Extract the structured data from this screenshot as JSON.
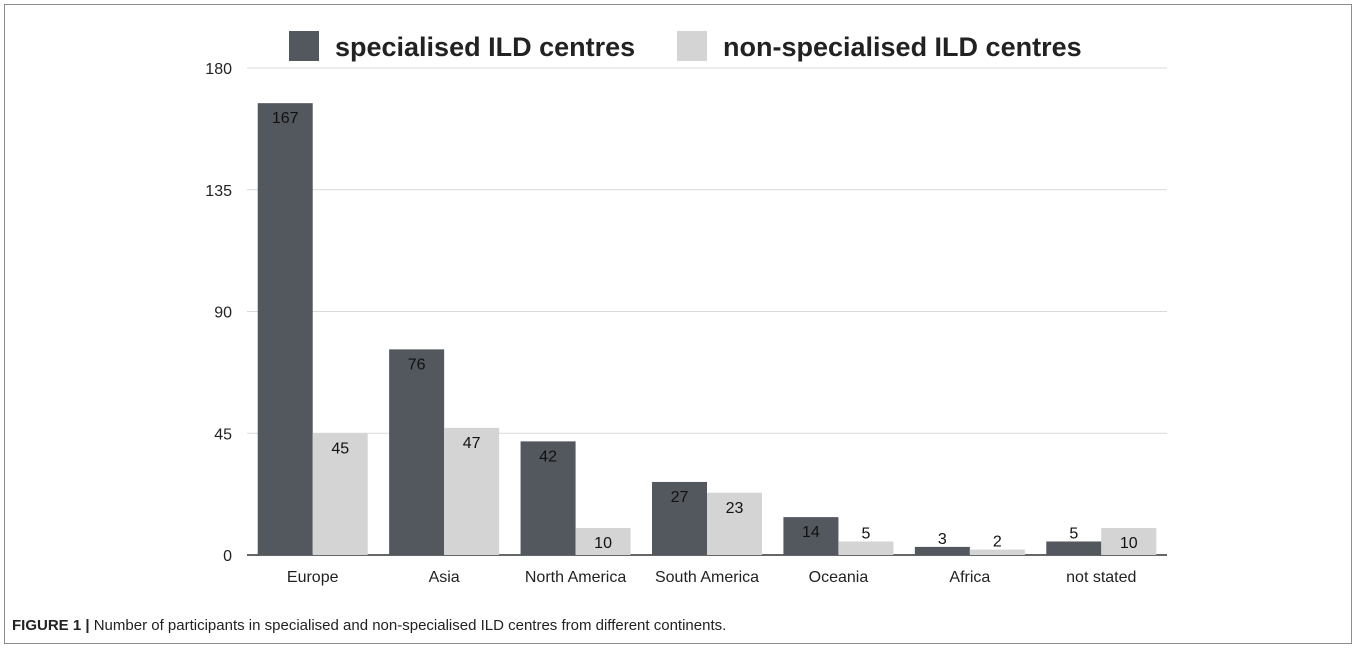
{
  "caption": {
    "label": "FIGURE 1 |",
    "text": "Number of participants in specialised and non-specialised ILD centres from different continents."
  },
  "colors": {
    "specialised": "#53575e",
    "non_specialised": "#d4d4d4",
    "grid": "#d9d9d9",
    "axis": "#333333"
  },
  "chart_data": {
    "type": "bar",
    "categories": [
      "Europe",
      "Asia",
      "North America",
      "South America",
      "Oceania",
      "Africa",
      "not stated"
    ],
    "series": [
      {
        "name": "specialised ILD centres",
        "values": [
          167,
          76,
          42,
          27,
          14,
          3,
          5
        ]
      },
      {
        "name": "non-specialised ILD centres",
        "values": [
          45,
          47,
          10,
          23,
          5,
          2,
          10
        ]
      }
    ],
    "yticks": [
      0,
      45,
      90,
      135,
      180
    ],
    "ylim": [
      0,
      180
    ],
    "legend_position": "top-center",
    "grid": true
  }
}
